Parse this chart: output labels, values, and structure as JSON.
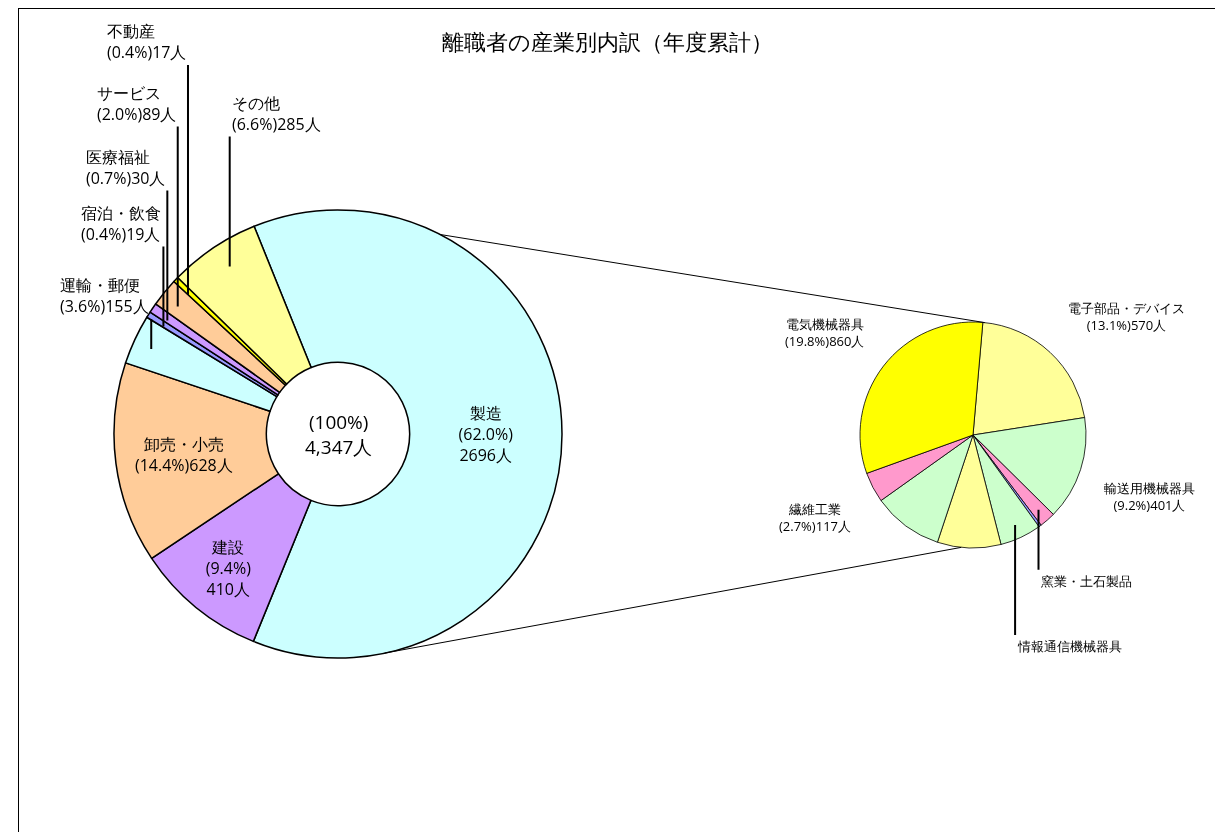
{
  "chart_data": [
    {
      "type": "donut",
      "title": "離職者の産業別内訳（年度累計）",
      "categories": [
        "製造",
        "建設",
        "卸売・小売",
        "運輸・郵便",
        "宿泊・飲食",
        "医療福祉",
        "サービス",
        "不動産",
        "その他"
      ],
      "values": [
        2696,
        410,
        628,
        155,
        19,
        30,
        89,
        17,
        285
      ],
      "value_labels": [
        "(62.0%)\n2696人",
        "(9.4%)\n410人",
        "(14.4%)628人",
        "(3.6%)155人",
        "(0.4%)19人",
        "(0.7%)30人",
        "(2.0%)89人",
        "(0.4%)17人",
        "(6.6%)285人"
      ],
      "colors": [
        "#ccffff",
        "#cc99ff",
        "#ffcc99",
        "#ccffff",
        "#9999ff",
        "#cc99ff",
        "#ffcc99",
        "#ffff00",
        "#ffff99"
      ],
      "annotations": [
        "(100%)\n4,347人"
      ]
    },
    {
      "type": "pie",
      "categories": [
        "電子部品・デバイス",
        "輸送用機械器具",
        "窯業・土石製品",
        null,
        "情報通信機械器具",
        null,
        null,
        "繊維工業",
        "電気機械器具"
      ],
      "values": [
        570,
        401,
        62,
        10,
        160,
        245,
        271,
        117,
        860
      ],
      "value_labels": [
        "(13.1%)570人",
        "(9.2%)401人",
        null,
        null,
        null,
        null,
        null,
        "(2.7%)117人",
        "(19.8%)860人"
      ],
      "colors": [
        "#ffff99",
        "#ccffcc",
        "#ff99cc",
        "#9999ff",
        "#ccffcc",
        "#ffff99",
        "#ccffcc",
        "#ff99cc",
        "#ffff00"
      ]
    }
  ]
}
